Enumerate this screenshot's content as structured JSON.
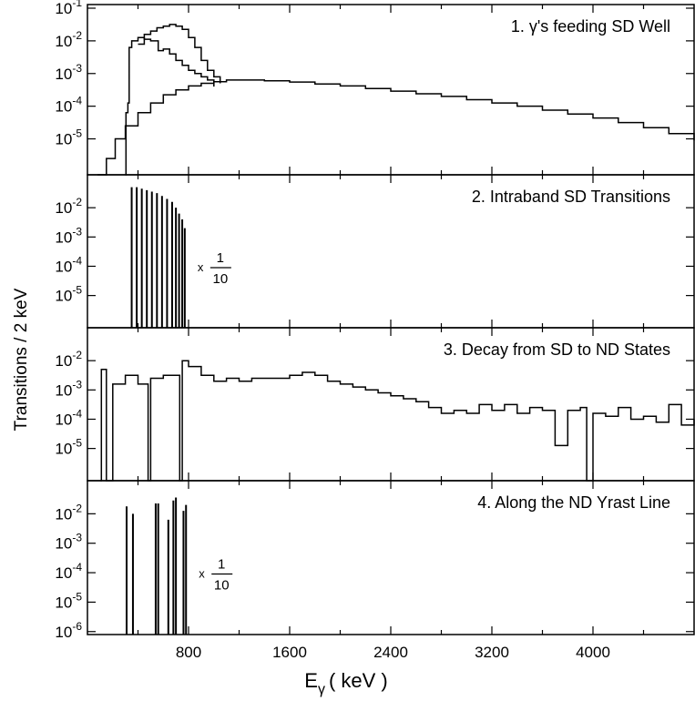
{
  "chart_data": {
    "type": "line",
    "multi_panel": true,
    "shared_x_axis": {
      "label_main": "E",
      "label_sub": "γ",
      "label_unit": "( keV )",
      "range": [
        0,
        4800
      ],
      "tick_labels": [
        800,
        1600,
        2400,
        3200,
        4000
      ],
      "minor_tick_step": 400
    },
    "ylabel": "Transitions / 2 keV",
    "scale_note": {
      "prefix": "x",
      "numerator": "1",
      "denominator": "10"
    },
    "panels": [
      {
        "title": "1. γ's feeding SD Well",
        "yscale": "log",
        "ylim_exp": [
          -6.1,
          -1
        ],
        "tick_exps": [
          -1,
          -2,
          -3,
          -4,
          -5
        ],
        "series": [
          {
            "points": [
              [
                80,
                -6.1
              ],
              [
                150,
                -5.6
              ],
              [
                220,
                -5.0
              ],
              [
                300,
                -4.6
              ],
              [
                400,
                -4.2
              ],
              [
                500,
                -3.9
              ],
              [
                600,
                -3.65
              ],
              [
                700,
                -3.5
              ],
              [
                800,
                -3.38
              ],
              [
                900,
                -3.3
              ],
              [
                1000,
                -3.25
              ],
              [
                1100,
                -3.2
              ],
              [
                1200,
                -3.2
              ],
              [
                1400,
                -3.22
              ],
              [
                1600,
                -3.26
              ],
              [
                1800,
                -3.32
              ],
              [
                2000,
                -3.38
              ],
              [
                2200,
                -3.46
              ],
              [
                2400,
                -3.54
              ],
              [
                2600,
                -3.62
              ],
              [
                2800,
                -3.7
              ],
              [
                3000,
                -3.8
              ],
              [
                3200,
                -3.9
              ],
              [
                3400,
                -4.0
              ],
              [
                3600,
                -4.12
              ],
              [
                3800,
                -4.24
              ],
              [
                4000,
                -4.36
              ],
              [
                4200,
                -4.5
              ],
              [
                4400,
                -4.66
              ],
              [
                4600,
                -4.84
              ],
              [
                4800,
                -5.05
              ]
            ]
          },
          {
            "points": [
              [
                300,
                -6.1
              ],
              [
                305,
                -4.2
              ],
              [
                320,
                -3.9
              ],
              [
                330,
                -2.2
              ],
              [
                350,
                -2.0
              ],
              [
                400,
                -1.9
              ],
              [
                450,
                -1.95
              ],
              [
                500,
                -2.0
              ],
              [
                560,
                -2.3
              ],
              [
                600,
                -2.25
              ],
              [
                650,
                -2.4
              ],
              [
                700,
                -2.6
              ],
              [
                750,
                -2.75
              ],
              [
                800,
                -2.9
              ],
              [
                850,
                -3.0
              ],
              [
                900,
                -3.1
              ],
              [
                950,
                -3.2
              ],
              [
                1000,
                -3.4
              ]
            ]
          },
          {
            "points": [
              [
                400,
                -2.1
              ],
              [
                450,
                -1.8
              ],
              [
                500,
                -1.7
              ],
              [
                550,
                -1.6
              ],
              [
                600,
                -1.55
              ],
              [
                650,
                -1.5
              ],
              [
                700,
                -1.55
              ],
              [
                750,
                -1.65
              ],
              [
                800,
                -1.9
              ],
              [
                850,
                -2.2
              ],
              [
                900,
                -2.6
              ],
              [
                950,
                -2.9
              ],
              [
                1000,
                -3.1
              ],
              [
                1050,
                -3.3
              ]
            ]
          }
        ]
      },
      {
        "title": "2. Intraband SD Transitions",
        "yscale": "log",
        "ylim_exp": [
          -6.1,
          -1
        ],
        "tick_exps": [
          -2,
          -3,
          -4,
          -5
        ],
        "scale_note": true,
        "spikes": {
          "baseline_exp": -6.1,
          "positions": [
            350,
            390,
            430,
            470,
            510,
            550,
            590,
            630,
            670,
            700,
            725,
            750,
            770
          ],
          "heights_exp": [
            -1.3,
            -1.3,
            -1.35,
            -1.4,
            -1.45,
            -1.5,
            -1.6,
            -1.7,
            -1.8,
            -2.0,
            -2.2,
            -2.4,
            -2.7
          ]
        }
      },
      {
        "title": "3. Decay from SD to ND States",
        "yscale": "log",
        "ylim_exp": [
          -6.1,
          -1
        ],
        "tick_exps": [
          -2,
          -3,
          -4,
          -5
        ],
        "series": [
          {
            "points": [
              [
                100,
                -6.1
              ],
              [
                110,
                -2.3
              ],
              [
                150,
                -6.1
              ],
              [
                200,
                -2.8
              ],
              [
                300,
                -2.5
              ],
              [
                400,
                -2.8
              ],
              [
                480,
                -6.1
              ],
              [
                500,
                -2.6
              ],
              [
                600,
                -2.5
              ],
              [
                700,
                -2.5
              ],
              [
                730,
                -6.1
              ],
              [
                750,
                -2.0
              ],
              [
                800,
                -2.2
              ],
              [
                900,
                -2.5
              ],
              [
                1000,
                -2.7
              ],
              [
                1100,
                -2.6
              ],
              [
                1200,
                -2.7
              ],
              [
                1300,
                -2.6
              ],
              [
                1400,
                -2.6
              ],
              [
                1500,
                -2.6
              ],
              [
                1600,
                -2.5
              ],
              [
                1700,
                -2.4
              ],
              [
                1800,
                -2.5
              ],
              [
                1900,
                -2.7
              ],
              [
                2000,
                -2.8
              ],
              [
                2100,
                -2.9
              ],
              [
                2200,
                -3.0
              ],
              [
                2300,
                -3.1
              ],
              [
                2400,
                -3.2
              ],
              [
                2500,
                -3.3
              ],
              [
                2600,
                -3.4
              ],
              [
                2700,
                -3.6
              ],
              [
                2800,
                -3.8
              ],
              [
                2900,
                -3.7
              ],
              [
                3000,
                -3.8
              ],
              [
                3100,
                -3.5
              ],
              [
                3200,
                -3.7
              ],
              [
                3300,
                -3.5
              ],
              [
                3400,
                -3.8
              ],
              [
                3500,
                -3.6
              ],
              [
                3600,
                -3.7
              ],
              [
                3700,
                -4.9
              ],
              [
                3800,
                -3.7
              ],
              [
                3900,
                -3.6
              ],
              [
                3950,
                -6.1
              ],
              [
                4000,
                -3.8
              ],
              [
                4100,
                -3.9
              ],
              [
                4200,
                -3.6
              ],
              [
                4300,
                -4.0
              ],
              [
                4400,
                -3.9
              ],
              [
                4500,
                -4.1
              ],
              [
                4600,
                -3.5
              ],
              [
                4700,
                -4.2
              ],
              [
                4800,
                -4.0
              ]
            ]
          }
        ]
      },
      {
        "title": "4.  Along the ND Yrast Line",
        "yscale": "log",
        "ylim_exp": [
          -6.1,
          -1
        ],
        "tick_exps": [
          -2,
          -3,
          -4,
          -5,
          -6
        ],
        "scale_note": true,
        "spikes": {
          "baseline_exp": -6.1,
          "positions": [
            310,
            360,
            540,
            560,
            640,
            680,
            700,
            760,
            780
          ],
          "heights_exp": [
            -1.75,
            -2.0,
            -1.65,
            -1.65,
            -2.2,
            -1.55,
            -1.45,
            -1.9,
            -1.7
          ]
        }
      }
    ]
  }
}
